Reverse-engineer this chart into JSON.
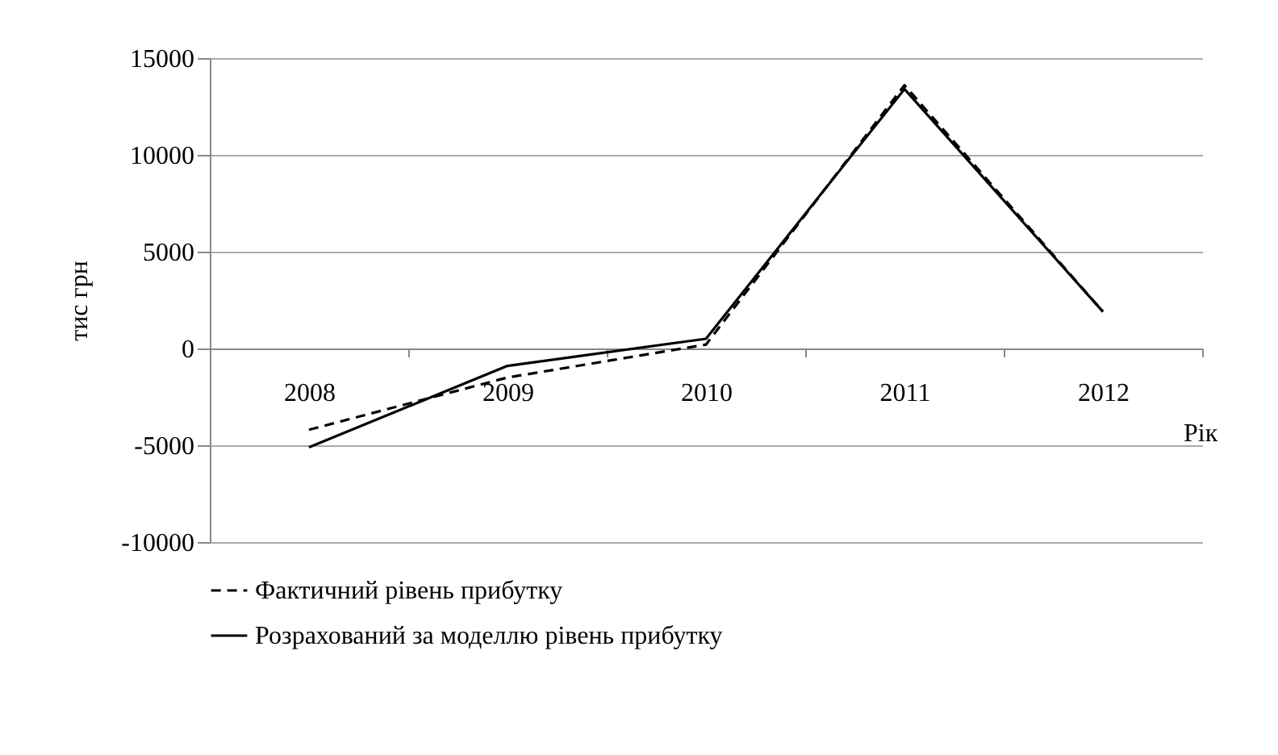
{
  "chart_data": {
    "type": "line",
    "ylabel": "тис грн",
    "xlabel": "Рік",
    "categories": [
      "2008",
      "2009",
      "2010",
      "2011",
      "2012"
    ],
    "series": [
      {
        "name": "Фактичний рівень прибутку",
        "color": "#000000",
        "line_style": "dashed",
        "values": [
          -4200,
          -1500,
          200,
          13600,
          1900
        ]
      },
      {
        "name": "Розрахований за моделлю рівень прибутку",
        "color": "#000000",
        "line_style": "solid",
        "values": [
          -5100,
          -900,
          500,
          13400,
          1900
        ]
      }
    ],
    "ylim": [
      -10000,
      15000
    ],
    "yticks": [
      -10000,
      -5000,
      0,
      5000,
      10000,
      15000
    ],
    "grid": "y",
    "legend": "bottom",
    "marker": "none"
  }
}
